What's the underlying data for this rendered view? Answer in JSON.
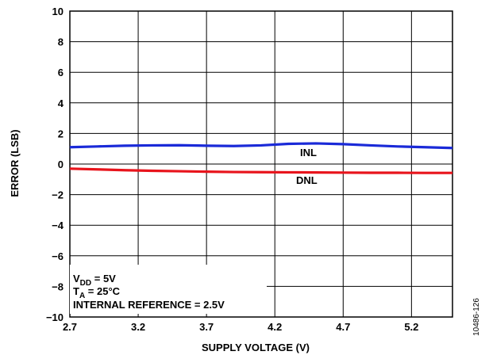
{
  "chart_data": {
    "type": "line",
    "xlabel": "SUPPLY VOLTAGE (V)",
    "ylabel": "ERROR (LSB)",
    "xlim": [
      2.7,
      5.5
    ],
    "ylim": [
      -10,
      10
    ],
    "x_ticks": [
      "2.7",
      "3.2",
      "3.7",
      "4.2",
      "4.7",
      "5.2"
    ],
    "y_ticks": [
      "10",
      "8",
      "6",
      "4",
      "2",
      "0",
      "−2",
      "−4",
      "−6",
      "−8",
      "−10"
    ],
    "grid": true,
    "series": [
      {
        "name": "INL",
        "color": "#1a2ad8",
        "x": [
          2.7,
          2.9,
          3.1,
          3.3,
          3.5,
          3.7,
          3.9,
          4.1,
          4.3,
          4.5,
          4.7,
          4.9,
          5.1,
          5.3,
          5.5
        ],
        "y": [
          1.1,
          1.15,
          1.2,
          1.22,
          1.23,
          1.2,
          1.18,
          1.22,
          1.32,
          1.35,
          1.3,
          1.22,
          1.15,
          1.1,
          1.05
        ]
      },
      {
        "name": "DNL",
        "color": "#e8141c",
        "x": [
          2.7,
          2.9,
          3.1,
          3.3,
          3.5,
          3.7,
          3.9,
          4.1,
          4.3,
          4.5,
          4.7,
          4.9,
          5.1,
          5.3,
          5.5
        ],
        "y": [
          -0.3,
          -0.35,
          -0.4,
          -0.44,
          -0.47,
          -0.5,
          -0.52,
          -0.53,
          -0.54,
          -0.55,
          -0.56,
          -0.57,
          -0.57,
          -0.58,
          -0.58
        ]
      }
    ],
    "annotations": {
      "vdd_main": "V",
      "vdd_sub": "DD",
      "vdd_rest": " = 5V",
      "ta_main": "T",
      "ta_sub": "A",
      "ta_rest": " = 25°C",
      "ref": "INTERNAL REFERENCE = 2.5V"
    },
    "figure_id": "10486-126"
  }
}
